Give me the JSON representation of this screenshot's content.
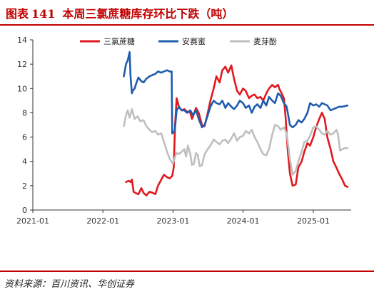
{
  "header": {
    "prefix": "图表",
    "number": "141",
    "title": "本周三氯蔗糖库存环比下跌（吨）"
  },
  "source": "资料来源：百川资讯、华创证券",
  "chart_data": {
    "type": "line",
    "title": "本周三氯蔗糖库存环比下跌（吨）",
    "xlabel": "",
    "ylabel": "",
    "ylim": [
      0,
      14
    ],
    "yticks": [
      0,
      2,
      4,
      6,
      8,
      10,
      12,
      14
    ],
    "xticks": [
      "2021-01",
      "2022-01",
      "2023-01",
      "2024-01",
      "2025-01"
    ],
    "grid": false,
    "legend_position": "top",
    "series": [
      {
        "name": "三氯蔗糖",
        "color": "#e0191e",
        "points": [
          [
            "2022-05-01",
            2.3
          ],
          [
            "2022-05-15",
            2.4
          ],
          [
            "2022-05-25",
            2.3
          ],
          [
            "2022-06-01",
            2.5
          ],
          [
            "2022-06-10",
            1.5
          ],
          [
            "2022-06-20",
            1.4
          ],
          [
            "2022-07-05",
            1.3
          ],
          [
            "2022-07-20",
            1.8
          ],
          [
            "2022-08-01",
            1.4
          ],
          [
            "2022-08-15",
            1.2
          ],
          [
            "2022-09-01",
            1.5
          ],
          [
            "2022-09-20",
            1.4
          ],
          [
            "2022-10-01",
            1.3
          ],
          [
            "2022-10-15",
            2.0
          ],
          [
            "2022-11-01",
            2.5
          ],
          [
            "2022-11-15",
            2.9
          ],
          [
            "2022-12-01",
            2.7
          ],
          [
            "2022-12-15",
            2.6
          ],
          [
            "2022-12-28",
            2.8
          ],
          [
            "2023-01-05",
            3.5
          ],
          [
            "2023-01-12",
            7.0
          ],
          [
            "2023-01-20",
            9.2
          ],
          [
            "2023-02-01",
            8.5
          ],
          [
            "2023-02-15",
            8.2
          ],
          [
            "2023-03-01",
            8.3
          ],
          [
            "2023-03-15",
            8.1
          ],
          [
            "2023-04-01",
            8.0
          ],
          [
            "2023-04-10",
            7.5
          ],
          [
            "2023-04-20",
            7.9
          ],
          [
            "2023-05-01",
            8.4
          ],
          [
            "2023-05-15",
            8.0
          ],
          [
            "2023-06-01",
            7.0
          ],
          [
            "2023-06-15",
            6.9
          ],
          [
            "2023-07-01",
            8.0
          ],
          [
            "2023-07-15",
            9.0
          ],
          [
            "2023-08-01",
            10.0
          ],
          [
            "2023-08-15",
            11.0
          ],
          [
            "2023-09-01",
            10.5
          ],
          [
            "2023-09-15",
            11.5
          ],
          [
            "2023-10-01",
            11.8
          ],
          [
            "2023-10-15",
            11.3
          ],
          [
            "2023-11-01",
            11.9
          ],
          [
            "2023-11-15",
            10.8
          ],
          [
            "2023-12-01",
            9.8
          ],
          [
            "2023-12-15",
            9.5
          ],
          [
            "2024-01-01",
            10.0
          ],
          [
            "2024-01-15",
            9.8
          ],
          [
            "2024-02-01",
            9.2
          ],
          [
            "2024-02-15",
            9.4
          ],
          [
            "2024-03-01",
            9.5
          ],
          [
            "2024-03-15",
            9.2
          ],
          [
            "2024-04-01",
            9.3
          ],
          [
            "2024-04-15",
            9.0
          ],
          [
            "2024-05-01",
            9.6
          ],
          [
            "2024-05-15",
            10.0
          ],
          [
            "2024-06-01",
            10.3
          ],
          [
            "2024-06-15",
            10.1
          ],
          [
            "2024-07-01",
            10.3
          ],
          [
            "2024-07-10",
            9.9
          ],
          [
            "2024-07-20",
            9.6
          ],
          [
            "2024-08-01",
            9.2
          ],
          [
            "2024-08-10",
            7.5
          ],
          [
            "2024-08-20",
            5.0
          ],
          [
            "2024-09-01",
            3.0
          ],
          [
            "2024-09-15",
            2.0
          ],
          [
            "2024-10-01",
            2.1
          ],
          [
            "2024-10-15",
            3.5
          ],
          [
            "2024-11-01",
            4.0
          ],
          [
            "2024-11-15",
            4.8
          ],
          [
            "2024-12-01",
            5.5
          ],
          [
            "2024-12-15",
            5.3
          ],
          [
            "2025-01-01",
            6.0
          ],
          [
            "2025-01-15",
            6.8
          ],
          [
            "2025-02-01",
            7.5
          ],
          [
            "2025-02-15",
            8.0
          ],
          [
            "2025-03-01",
            7.5
          ],
          [
            "2025-03-15",
            6.0
          ],
          [
            "2025-04-01",
            5.0
          ],
          [
            "2025-04-15",
            4.0
          ],
          [
            "2025-05-01",
            3.5
          ],
          [
            "2025-05-15",
            3.0
          ],
          [
            "2025-06-01",
            2.5
          ],
          [
            "2025-06-15",
            2.0
          ],
          [
            "2025-06-28",
            1.9
          ]
        ]
      },
      {
        "name": "安赛蜜",
        "color": "#1f5cae",
        "points": [
          [
            "2022-04-20",
            11.0
          ],
          [
            "2022-05-01",
            12.0
          ],
          [
            "2022-05-10",
            12.3
          ],
          [
            "2022-05-20",
            13.0
          ],
          [
            "2022-05-25",
            11.0
          ],
          [
            "2022-06-01",
            9.6
          ],
          [
            "2022-06-05",
            9.8
          ],
          [
            "2022-06-15",
            10.0
          ],
          [
            "2022-06-25",
            10.5
          ],
          [
            "2022-07-05",
            10.9
          ],
          [
            "2022-07-20",
            10.6
          ],
          [
            "2022-08-01",
            10.5
          ],
          [
            "2022-08-15",
            10.8
          ],
          [
            "2022-09-01",
            11.0
          ],
          [
            "2022-09-15",
            11.1
          ],
          [
            "2022-10-01",
            11.2
          ],
          [
            "2022-10-15",
            11.4
          ],
          [
            "2022-11-01",
            11.3
          ],
          [
            "2022-11-15",
            11.4
          ],
          [
            "2022-12-01",
            11.5
          ],
          [
            "2022-12-15",
            11.4
          ],
          [
            "2022-12-25",
            11.4
          ],
          [
            "2022-12-28",
            6.3
          ],
          [
            "2023-01-10",
            6.5
          ],
          [
            "2023-01-20",
            8.2
          ],
          [
            "2023-02-01",
            8.5
          ],
          [
            "2023-02-15",
            8.2
          ],
          [
            "2023-03-01",
            8.2
          ],
          [
            "2023-03-15",
            8.0
          ],
          [
            "2023-04-01",
            8.2
          ],
          [
            "2023-04-15",
            7.8
          ],
          [
            "2023-05-01",
            8.2
          ],
          [
            "2023-05-15",
            7.5
          ],
          [
            "2023-06-01",
            6.8
          ],
          [
            "2023-06-15",
            7.0
          ],
          [
            "2023-07-01",
            7.8
          ],
          [
            "2023-07-15",
            8.5
          ],
          [
            "2023-08-01",
            9.0
          ],
          [
            "2023-08-15",
            8.8
          ],
          [
            "2023-09-01",
            8.7
          ],
          [
            "2023-09-15",
            9.0
          ],
          [
            "2023-10-01",
            8.4
          ],
          [
            "2023-10-15",
            8.8
          ],
          [
            "2023-11-01",
            8.5
          ],
          [
            "2023-11-15",
            8.3
          ],
          [
            "2023-12-01",
            8.6
          ],
          [
            "2023-12-15",
            9.0
          ],
          [
            "2024-01-01",
            8.8
          ],
          [
            "2024-01-15",
            8.4
          ],
          [
            "2024-02-01",
            8.6
          ],
          [
            "2024-02-15",
            8.0
          ],
          [
            "2024-03-01",
            8.5
          ],
          [
            "2024-03-15",
            8.7
          ],
          [
            "2024-04-01",
            8.4
          ],
          [
            "2024-04-15",
            9.0
          ],
          [
            "2024-05-01",
            8.6
          ],
          [
            "2024-05-15",
            9.3
          ],
          [
            "2024-06-01",
            9.0
          ],
          [
            "2024-06-15",
            8.8
          ],
          [
            "2024-07-01",
            9.6
          ],
          [
            "2024-07-15",
            9.4
          ],
          [
            "2024-08-01",
            8.8
          ],
          [
            "2024-08-15",
            8.5
          ],
          [
            "2024-09-01",
            7.0
          ],
          [
            "2024-09-15",
            6.8
          ],
          [
            "2024-10-01",
            7.0
          ],
          [
            "2024-10-15",
            7.4
          ],
          [
            "2024-11-01",
            7.2
          ],
          [
            "2024-11-15",
            7.5
          ],
          [
            "2024-12-01",
            8.0
          ],
          [
            "2024-12-15",
            8.8
          ],
          [
            "2025-01-01",
            8.6
          ],
          [
            "2025-01-15",
            8.7
          ],
          [
            "2025-02-01",
            8.5
          ],
          [
            "2025-02-15",
            8.8
          ],
          [
            "2025-03-01",
            8.7
          ],
          [
            "2025-03-15",
            8.6
          ],
          [
            "2025-04-01",
            8.2
          ],
          [
            "2025-04-15",
            8.3
          ],
          [
            "2025-05-01",
            8.4
          ],
          [
            "2025-05-15",
            8.5
          ],
          [
            "2025-06-01",
            8.5
          ],
          [
            "2025-06-28",
            8.6
          ]
        ]
      },
      {
        "name": "麦芽酚",
        "color": "#bfbfbf",
        "points": [
          [
            "2022-04-20",
            6.9
          ],
          [
            "2022-05-01",
            7.8
          ],
          [
            "2022-05-10",
            8.2
          ],
          [
            "2022-05-20",
            7.6
          ],
          [
            "2022-06-01",
            8.3
          ],
          [
            "2022-06-15",
            7.5
          ],
          [
            "2022-07-01",
            7.7
          ],
          [
            "2022-07-15",
            7.3
          ],
          [
            "2022-08-01",
            7.4
          ],
          [
            "2022-08-15",
            6.9
          ],
          [
            "2022-09-01",
            6.6
          ],
          [
            "2022-09-15",
            6.4
          ],
          [
            "2022-10-01",
            6.5
          ],
          [
            "2022-10-15",
            6.2
          ],
          [
            "2022-11-01",
            6.3
          ],
          [
            "2022-11-15",
            5.6
          ],
          [
            "2022-12-01",
            4.8
          ],
          [
            "2022-12-15",
            4.2
          ],
          [
            "2023-01-01",
            3.8
          ],
          [
            "2023-01-10",
            4.3
          ],
          [
            "2023-01-20",
            4.7
          ],
          [
            "2023-02-01",
            4.6
          ],
          [
            "2023-02-15",
            4.8
          ],
          [
            "2023-03-01",
            5.0
          ],
          [
            "2023-03-10",
            4.4
          ],
          [
            "2023-03-20",
            5.3
          ],
          [
            "2023-04-01",
            4.6
          ],
          [
            "2023-04-10",
            3.7
          ],
          [
            "2023-04-20",
            3.8
          ],
          [
            "2023-05-01",
            4.7
          ],
          [
            "2023-05-10",
            4.5
          ],
          [
            "2023-05-20",
            3.6
          ],
          [
            "2023-06-01",
            3.7
          ],
          [
            "2023-06-15",
            4.6
          ],
          [
            "2023-07-01",
            5.0
          ],
          [
            "2023-07-15",
            5.3
          ],
          [
            "2023-08-01",
            5.8
          ],
          [
            "2023-08-15",
            5.6
          ],
          [
            "2023-09-01",
            5.4
          ],
          [
            "2023-09-15",
            5.7
          ],
          [
            "2023-10-01",
            5.8
          ],
          [
            "2023-10-15",
            5.5
          ],
          [
            "2023-11-01",
            5.9
          ],
          [
            "2023-11-15",
            6.3
          ],
          [
            "2023-12-01",
            5.7
          ],
          [
            "2023-12-15",
            6.0
          ],
          [
            "2024-01-01",
            6.1
          ],
          [
            "2024-01-15",
            6.5
          ],
          [
            "2024-02-01",
            6.3
          ],
          [
            "2024-02-15",
            6.6
          ],
          [
            "2024-03-01",
            6.0
          ],
          [
            "2024-03-15",
            5.6
          ],
          [
            "2024-04-01",
            5.0
          ],
          [
            "2024-04-15",
            4.6
          ],
          [
            "2024-05-01",
            4.5
          ],
          [
            "2024-05-15",
            5.0
          ],
          [
            "2024-06-01",
            6.2
          ],
          [
            "2024-06-15",
            7.0
          ],
          [
            "2024-07-01",
            6.9
          ],
          [
            "2024-07-15",
            6.6
          ],
          [
            "2024-08-01",
            6.8
          ],
          [
            "2024-08-15",
            6.3
          ],
          [
            "2024-09-01",
            4.2
          ],
          [
            "2024-09-15",
            2.9
          ],
          [
            "2024-10-01",
            3.2
          ],
          [
            "2024-10-15",
            4.0
          ],
          [
            "2024-11-01",
            4.8
          ],
          [
            "2024-11-15",
            5.6
          ],
          [
            "2024-12-01",
            5.7
          ],
          [
            "2024-12-15",
            6.1
          ],
          [
            "2025-01-01",
            6.8
          ],
          [
            "2025-01-15",
            6.9
          ],
          [
            "2025-02-01",
            6.6
          ],
          [
            "2025-02-15",
            6.3
          ],
          [
            "2025-03-01",
            6.2
          ],
          [
            "2025-03-15",
            6.5
          ],
          [
            "2025-04-01",
            6.2
          ],
          [
            "2025-04-15",
            6.3
          ],
          [
            "2025-05-01",
            6.6
          ],
          [
            "2025-05-10",
            6.2
          ],
          [
            "2025-05-20",
            4.9
          ],
          [
            "2025-06-01",
            5.0
          ],
          [
            "2025-06-15",
            5.1
          ],
          [
            "2025-06-28",
            5.1
          ]
        ]
      }
    ]
  }
}
